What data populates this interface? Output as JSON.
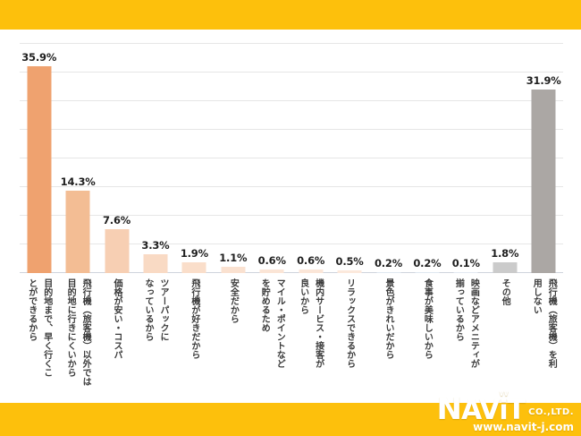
{
  "brand": {
    "yellow": "#FDC00C"
  },
  "chart_data": {
    "type": "bar",
    "title": "",
    "xlabel": "",
    "ylabel": "",
    "ylim": [
      0,
      40
    ],
    "grid": true,
    "grid_step": 5,
    "legend": false,
    "value_suffix": "%",
    "categories": [
      "目的地まで、早く行くこ\nとができるから",
      "飛行機（旅客機）以外では\n目的地に行きにくいから",
      "価格が安い・コスパ",
      "ツアーパックに\nなっているから",
      "飛行機が好きだから",
      "安全だから",
      "マイル・ポイントなど\nを貯めるため",
      "機内サービス・接客が\n良いから",
      "リラックスできるから",
      "景色がきれいだから",
      "食事が美味しいから",
      "映画などアメニティが\n揃っているから",
      "その他",
      "飛行機（旅客機）を利\n用しない"
    ],
    "values": [
      35.9,
      14.3,
      7.6,
      3.3,
      1.9,
      1.1,
      0.6,
      0.6,
      0.5,
      0.2,
      0.2,
      0.1,
      1.8,
      31.9
    ],
    "value_labels": [
      "35.9%",
      "14.3%",
      "7.6%",
      "3.3%",
      "1.9%",
      "1.1%",
      "0.6%",
      "0.6%",
      "0.5%",
      "0.2%",
      "0.2%",
      "0.1%",
      "1.8%",
      "31.9%"
    ],
    "bar_colors": [
      "#EFA26F",
      "#F3BD94",
      "#F7CFB3",
      "#F9DAC4",
      "#FADECA",
      "#FAE1D0",
      "#FBE5D6",
      "#FBE6D8",
      "#FCE9DC",
      "#DFE7F0",
      "#DFE7F0",
      "#E2E9F1",
      "#CBCBCB",
      "#ABA7A4"
    ]
  },
  "footer": {
    "logo_text_n": "N",
    "logo_text_av": "AV",
    "logo_text_i": "i",
    "logo_text_t": "T",
    "logo_company": "CO.,LTD.",
    "logo_url": "www.navit-j.com"
  }
}
